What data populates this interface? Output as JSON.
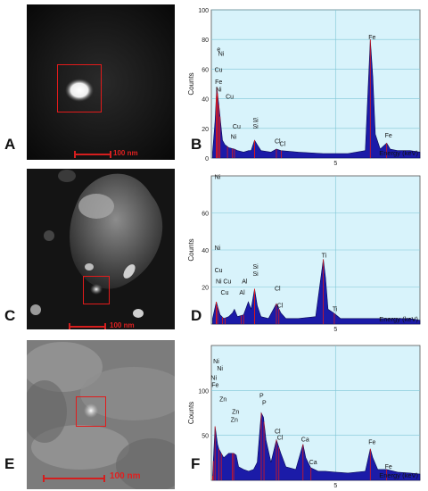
{
  "panels": {
    "A": {
      "letter": "A",
      "scale_label": "100 nm"
    },
    "B": {
      "letter": "B"
    },
    "C": {
      "letter": "C",
      "scale_label": "100 nm"
    },
    "D": {
      "letter": "D"
    },
    "E": {
      "letter": "E",
      "scale_label": "100 nm"
    },
    "F": {
      "letter": "F"
    }
  },
  "chart_data": [
    {
      "type": "bar",
      "panel": "B",
      "ylabel": "Counts",
      "xlabel": "Energy (keV)",
      "ylim": [
        0,
        100
      ],
      "xlim": [
        0,
        8.4
      ],
      "yticks": [
        0,
        20,
        40,
        60,
        80,
        100
      ],
      "xticks": [
        5
      ],
      "grid": true,
      "spectrum": [
        [
          0.05,
          4
        ],
        [
          0.15,
          25
        ],
        [
          0.22,
          48
        ],
        [
          0.3,
          36
        ],
        [
          0.45,
          12
        ],
        [
          0.55,
          9
        ],
        [
          0.7,
          7
        ],
        [
          0.93,
          6
        ],
        [
          1.05,
          5
        ],
        [
          1.3,
          4
        ],
        [
          1.5,
          5
        ],
        [
          1.6,
          5
        ],
        [
          1.74,
          12
        ],
        [
          1.85,
          9
        ],
        [
          2.0,
          5
        ],
        [
          2.4,
          4
        ],
        [
          2.62,
          6
        ],
        [
          2.8,
          5
        ],
        [
          3.5,
          4
        ],
        [
          4.5,
          3
        ],
        [
          5.5,
          3
        ],
        [
          6.2,
          5
        ],
        [
          6.4,
          80
        ],
        [
          6.5,
          55
        ],
        [
          6.6,
          16
        ],
        [
          6.8,
          6
        ],
        [
          7.06,
          10
        ],
        [
          7.2,
          6
        ],
        [
          7.5,
          5
        ],
        [
          8.0,
          5
        ],
        [
          8.4,
          4
        ]
      ],
      "peak_labels": [
        {
          "text": "Fe",
          "x": 6.4,
          "y": 80
        },
        {
          "text": "Fe",
          "x": 7.06,
          "y": 14
        },
        {
          "text": "Fe",
          "x": 0.22,
          "y": 50
        },
        {
          "text": "Ni",
          "x": 0.25,
          "y": 45
        },
        {
          "text": "Cu",
          "x": 0.2,
          "y": 58
        },
        {
          "text": "Ni",
          "x": 0.35,
          "y": 69
        },
        {
          "text": "e",
          "x": 0.3,
          "y": 72
        },
        {
          "text": "Cu",
          "x": 0.65,
          "y": 40
        },
        {
          "text": "Cu",
          "x": 0.93,
          "y": 20
        },
        {
          "text": "Ni",
          "x": 0.85,
          "y": 13
        },
        {
          "text": "Si",
          "x": 1.74,
          "y": 24
        },
        {
          "text": "Si",
          "x": 1.74,
          "y": 20
        },
        {
          "text": "Cl",
          "x": 2.62,
          "y": 10
        },
        {
          "text": "Cl",
          "x": 2.82,
          "y": 8
        }
      ]
    },
    {
      "type": "bar",
      "panel": "D",
      "ylabel": "Counts",
      "xlabel": "Energy (keV)",
      "ylim": [
        0,
        80
      ],
      "xlim": [
        0,
        8.4
      ],
      "yticks": [
        20,
        40,
        60
      ],
      "xticks": [
        5
      ],
      "grid": true,
      "spectrum": [
        [
          0.05,
          3
        ],
        [
          0.2,
          12
        ],
        [
          0.35,
          5
        ],
        [
          0.5,
          3
        ],
        [
          0.7,
          4
        ],
        [
          0.85,
          6
        ],
        [
          0.93,
          8
        ],
        [
          1.05,
          4
        ],
        [
          1.3,
          5
        ],
        [
          1.49,
          12
        ],
        [
          1.6,
          8
        ],
        [
          1.74,
          19
        ],
        [
          1.85,
          10
        ],
        [
          2.0,
          4
        ],
        [
          2.3,
          3
        ],
        [
          2.62,
          11
        ],
        [
          2.8,
          6
        ],
        [
          3.0,
          3
        ],
        [
          3.5,
          3
        ],
        [
          4.2,
          4
        ],
        [
          4.51,
          35
        ],
        [
          4.6,
          25
        ],
        [
          4.7,
          8
        ],
        [
          4.93,
          6
        ],
        [
          5.2,
          3
        ],
        [
          6.0,
          3
        ],
        [
          7.0,
          3
        ],
        [
          8.0,
          3
        ],
        [
          8.4,
          2
        ]
      ],
      "peak_labels": [
        {
          "text": "Ni",
          "x": 0.2,
          "y": 82
        },
        {
          "text": "Ni",
          "x": 0.2,
          "y": 40
        },
        {
          "text": "Cu",
          "x": 0.2,
          "y": 28
        },
        {
          "text": "Ni",
          "x": 0.25,
          "y": 22
        },
        {
          "text": "Cu",
          "x": 0.55,
          "y": 22
        },
        {
          "text": "Cu",
          "x": 0.45,
          "y": 16
        },
        {
          "text": "Al",
          "x": 1.3,
          "y": 22
        },
        {
          "text": "Al",
          "x": 1.2,
          "y": 16
        },
        {
          "text": "Si",
          "x": 1.74,
          "y": 30
        },
        {
          "text": "Si",
          "x": 1.74,
          "y": 26
        },
        {
          "text": "Cl",
          "x": 2.62,
          "y": 18
        },
        {
          "text": "Cl",
          "x": 2.72,
          "y": 9
        },
        {
          "text": "Ti",
          "x": 4.51,
          "y": 36
        },
        {
          "text": "Ti",
          "x": 4.95,
          "y": 7
        }
      ]
    },
    {
      "type": "bar",
      "panel": "F",
      "ylabel": "Counts",
      "xlabel": "Energy (keV)",
      "ylim": [
        0,
        150
      ],
      "xlim": [
        0,
        8.4
      ],
      "yticks": [
        50,
        100
      ],
      "xticks": [
        5
      ],
      "grid": true,
      "spectrum": [
        [
          0.05,
          5
        ],
        [
          0.15,
          60
        ],
        [
          0.25,
          40
        ],
        [
          0.3,
          35
        ],
        [
          0.5,
          25
        ],
        [
          0.7,
          30
        ],
        [
          0.9,
          30
        ],
        [
          1.0,
          28
        ],
        [
          1.1,
          15
        ],
        [
          1.3,
          12
        ],
        [
          1.5,
          10
        ],
        [
          1.7,
          12
        ],
        [
          1.85,
          20
        ],
        [
          2.01,
          75
        ],
        [
          2.1,
          70
        ],
        [
          2.2,
          45
        ],
        [
          2.4,
          20
        ],
        [
          2.62,
          45
        ],
        [
          2.8,
          30
        ],
        [
          3.0,
          15
        ],
        [
          3.4,
          12
        ],
        [
          3.69,
          40
        ],
        [
          3.8,
          25
        ],
        [
          4.0,
          14
        ],
        [
          4.3,
          10
        ],
        [
          4.6,
          10
        ],
        [
          5.0,
          9
        ],
        [
          5.5,
          8
        ],
        [
          6.2,
          10
        ],
        [
          6.4,
          35
        ],
        [
          6.5,
          25
        ],
        [
          6.7,
          12
        ],
        [
          7.06,
          12
        ],
        [
          7.5,
          9
        ],
        [
          8.0,
          8
        ],
        [
          8.4,
          7
        ]
      ],
      "peak_labels": [
        {
          "text": "Ni",
          "x": 0.15,
          "y": 130
        },
        {
          "text": "Ni",
          "x": 0.3,
          "y": 122
        },
        {
          "text": "Ni",
          "x": 0.05,
          "y": 112
        },
        {
          "text": "Fe",
          "x": 0.08,
          "y": 104
        },
        {
          "text": "Zn",
          "x": 0.4,
          "y": 88
        },
        {
          "text": "Zn",
          "x": 0.9,
          "y": 74
        },
        {
          "text": "Zn",
          "x": 0.85,
          "y": 65
        },
        {
          "text": "P",
          "x": 2.01,
          "y": 92
        },
        {
          "text": "P",
          "x": 2.12,
          "y": 84
        },
        {
          "text": "Cl",
          "x": 2.62,
          "y": 52
        },
        {
          "text": "Cl",
          "x": 2.72,
          "y": 45
        },
        {
          "text": "Ca",
          "x": 3.69,
          "y": 43
        },
        {
          "text": "Ca",
          "x": 4.01,
          "y": 18
        },
        {
          "text": "Fe",
          "x": 6.4,
          "y": 40
        },
        {
          "text": "Fe",
          "x": 7.06,
          "y": 13
        }
      ]
    }
  ]
}
